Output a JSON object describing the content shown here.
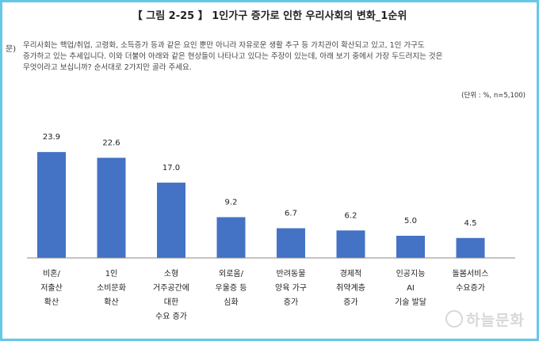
{
  "header": {
    "title": "【 그림 2-25 】 1인가구 증가로 인한 우리사회의 변화_1순위"
  },
  "question": {
    "marker": "문)",
    "lines": [
      "우리사회는 핵업/취업, 고령화, 소득증가 등과 같은 요인 뿐만 아니라 자유로운 생활 추구 등 가치관이 확산되고 있고, 1인 가구도",
      "증가하고 있는 추세입니다. 이와 더불어 아래와 같은 현상들이 나타나고 있다는 주장이 있는데, 아래 보기 중에서 가장 두드러지는 것은",
      "무엇이라고 보십니까? 순서대로 2가지만 골라 주세요."
    ]
  },
  "unit_note": "(단위 : %, n=5,100)",
  "watermark": "하늘문화",
  "colors": {
    "bar": "#4472c4",
    "frame": "#64c8e6",
    "baseline": "#888888"
  },
  "chart_data": {
    "type": "bar",
    "categories": [
      [
        "비혼/",
        "저출산",
        "확산"
      ],
      [
        "1인",
        "소비문화",
        "확산"
      ],
      [
        "소형",
        "거주공간에",
        "대한",
        "수요 증가"
      ],
      [
        "외로움/",
        "우울증 등",
        "심화"
      ],
      [
        "반려동물",
        "양육 가구",
        "증가"
      ],
      [
        "경제적",
        "취약계층",
        "증가"
      ],
      [
        "인공지능",
        "AI",
        "기술 발달"
      ],
      [
        "돌봄서비스",
        "수요증가"
      ]
    ],
    "values": [
      23.9,
      22.6,
      17.0,
      9.2,
      6.7,
      6.2,
      5.0,
      4.5
    ],
    "value_labels": [
      "23.9",
      "22.6",
      "17.0",
      "9.2",
      "6.7",
      "6.2",
      "5.0",
      "4.5"
    ],
    "ylim": [
      0,
      30
    ],
    "grid": false,
    "legend": "none"
  }
}
